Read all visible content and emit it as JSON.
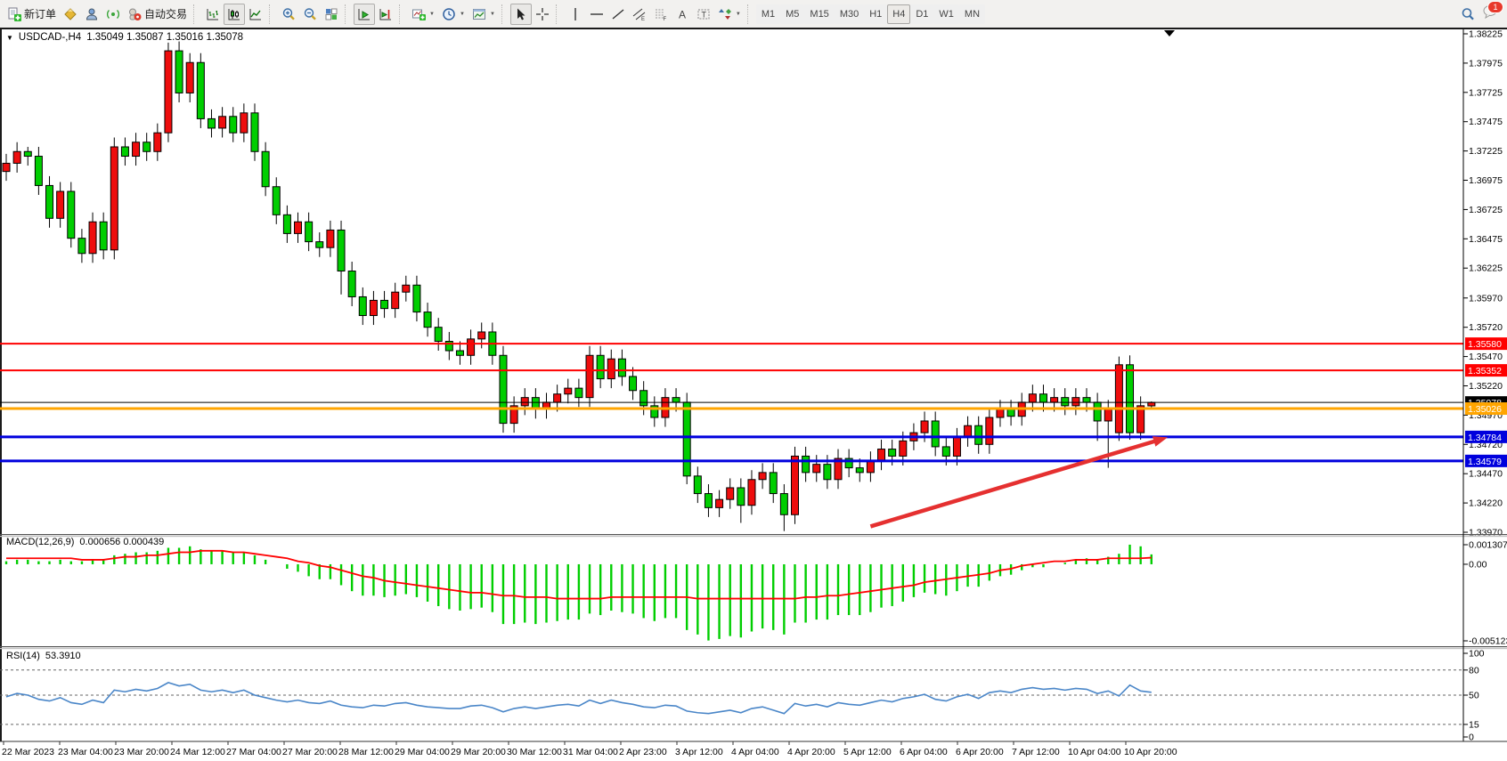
{
  "toolbar": {
    "new_order_label": "新订单",
    "autotrade_label": "自动交易",
    "timeframes": [
      "M1",
      "M5",
      "M15",
      "M30",
      "H1",
      "H4",
      "D1",
      "W1",
      "MN"
    ],
    "active_timeframe": "H4",
    "chat_badge": "1"
  },
  "chart": {
    "title_symbol": "USDCAD-,H4",
    "ohlc_text": "1.35049 1.35087 1.35016 1.35078"
  },
  "indicators": {
    "macd_label": "MACD(12,26,9)",
    "macd_values": "0.000656 0.000439",
    "rsi_label": "RSI(14)",
    "rsi_value": "53.3910"
  },
  "chart_data": {
    "type": "candlestick",
    "symbol": "USDCAD",
    "period": "H4",
    "colors": {
      "bull": "#ee0d0d",
      "bear": "#00ce00",
      "wick": "#000000",
      "macd_hist": "#00ce00",
      "macd_signal": "#ff0000",
      "rsi_line": "#4a86c8",
      "arrow": "#e53030"
    },
    "price_axis": {
      "top_value": 1.38225,
      "bottom_value": 1.3397,
      "ticks": [
        "1.38225",
        "1.37975",
        "1.37725",
        "1.37475",
        "1.37225",
        "1.36975",
        "1.36725",
        "1.36475",
        "1.36225",
        "1.35970",
        "1.35720",
        "1.35470",
        "1.35220",
        "1.34970",
        "1.34720",
        "1.34470",
        "1.34220",
        "1.33970"
      ]
    },
    "levels": [
      {
        "price": 1.3558,
        "label": "1.35580",
        "color": "#ff0000",
        "width": 2
      },
      {
        "price": 1.35352,
        "label": "1.35352",
        "color": "#ff0000",
        "width": 2
      },
      {
        "price": 1.35078,
        "label": "1.35078",
        "color": "#000000",
        "width": 1
      },
      {
        "price": 1.35026,
        "label": "1.35026",
        "color": "#ffa500",
        "width": 3
      },
      {
        "price": 1.34784,
        "label": "1.34784",
        "color": "#0000dd",
        "width": 3
      },
      {
        "price": 1.34579,
        "label": "1.34579",
        "color": "#0000dd",
        "width": 3
      }
    ],
    "trend_arrow": {
      "bar_start": 80,
      "price_start": 1.3402,
      "bar_end": 107.5,
      "price_end": 1.3478,
      "color": "#e53030"
    },
    "candles": [
      [
        1.3705,
        1.372,
        1.3697,
        1.3712
      ],
      [
        1.3712,
        1.373,
        1.3704,
        1.3722
      ],
      [
        1.3722,
        1.3726,
        1.371,
        1.3718
      ],
      [
        1.3718,
        1.3726,
        1.3685,
        1.3693
      ],
      [
        1.3693,
        1.3701,
        1.3657,
        1.3665
      ],
      [
        1.3665,
        1.3696,
        1.3657,
        1.3688
      ],
      [
        1.3688,
        1.3696,
        1.364,
        1.3648
      ],
      [
        1.3648,
        1.3656,
        1.3627,
        1.3635
      ],
      [
        1.3635,
        1.367,
        1.3627,
        1.3662
      ],
      [
        1.3662,
        1.367,
        1.363,
        1.3638
      ],
      [
        1.3638,
        1.3734,
        1.363,
        1.3726
      ],
      [
        1.3726,
        1.3734,
        1.371,
        1.3718
      ],
      [
        1.3718,
        1.3738,
        1.371,
        1.373
      ],
      [
        1.373,
        1.3738,
        1.3714,
        1.3722
      ],
      [
        1.3722,
        1.3746,
        1.3714,
        1.3738
      ],
      [
        1.3738,
        1.3815,
        1.373,
        1.3808
      ],
      [
        1.3808,
        1.3816,
        1.3764,
        1.3772
      ],
      [
        1.3772,
        1.3806,
        1.3764,
        1.3798
      ],
      [
        1.3798,
        1.3806,
        1.3742,
        1.375
      ],
      [
        1.375,
        1.3758,
        1.3734,
        1.3742
      ],
      [
        1.3742,
        1.376,
        1.3734,
        1.3752
      ],
      [
        1.3752,
        1.376,
        1.373,
        1.3738
      ],
      [
        1.3738,
        1.3763,
        1.373,
        1.3755
      ],
      [
        1.3755,
        1.3763,
        1.3714,
        1.3722
      ],
      [
        1.3722,
        1.373,
        1.3684,
        1.3692
      ],
      [
        1.3692,
        1.37,
        1.366,
        1.3668
      ],
      [
        1.3668,
        1.3676,
        1.3644,
        1.3652
      ],
      [
        1.3652,
        1.367,
        1.3644,
        1.3662
      ],
      [
        1.3662,
        1.367,
        1.3637,
        1.3645
      ],
      [
        1.3645,
        1.3653,
        1.3632,
        1.364
      ],
      [
        1.364,
        1.3663,
        1.3632,
        1.3655
      ],
      [
        1.3655,
        1.3663,
        1.36,
        1.362
      ],
      [
        1.362,
        1.3628,
        1.359,
        1.3598
      ],
      [
        1.3598,
        1.3606,
        1.3574,
        1.3582
      ],
      [
        1.3582,
        1.3603,
        1.3574,
        1.3595
      ],
      [
        1.3595,
        1.3603,
        1.358,
        1.3588
      ],
      [
        1.3588,
        1.361,
        1.358,
        1.3602
      ],
      [
        1.3602,
        1.3616,
        1.3594,
        1.3608
      ],
      [
        1.3608,
        1.3616,
        1.3577,
        1.3585
      ],
      [
        1.3585,
        1.3593,
        1.3564,
        1.3572
      ],
      [
        1.3572,
        1.358,
        1.3552,
        1.356
      ],
      [
        1.356,
        1.3568,
        1.3544,
        1.3552
      ],
      [
        1.3552,
        1.356,
        1.354,
        1.3548
      ],
      [
        1.3548,
        1.357,
        1.354,
        1.3562
      ],
      [
        1.3562,
        1.3576,
        1.3554,
        1.3568
      ],
      [
        1.3568,
        1.3576,
        1.354,
        1.3548
      ],
      [
        1.3548,
        1.3556,
        1.3482,
        1.349
      ],
      [
        1.349,
        1.3513,
        1.3482,
        1.3505
      ],
      [
        1.3505,
        1.352,
        1.3497,
        1.3512
      ],
      [
        1.3512,
        1.352,
        1.3494,
        1.3502
      ],
      [
        1.3502,
        1.3516,
        1.3494,
        1.3508
      ],
      [
        1.3508,
        1.3523,
        1.35,
        1.3515
      ],
      [
        1.3515,
        1.3528,
        1.3507,
        1.352
      ],
      [
        1.352,
        1.3528,
        1.3504,
        1.3512
      ],
      [
        1.3512,
        1.3556,
        1.3504,
        1.3548
      ],
      [
        1.3548,
        1.3556,
        1.352,
        1.3528
      ],
      [
        1.3528,
        1.3553,
        1.352,
        1.3545
      ],
      [
        1.3545,
        1.3553,
        1.3522,
        1.353
      ],
      [
        1.353,
        1.3538,
        1.351,
        1.3518
      ],
      [
        1.3518,
        1.3526,
        1.3497,
        1.3505
      ],
      [
        1.3505,
        1.3513,
        1.3487,
        1.3495
      ],
      [
        1.3495,
        1.352,
        1.3487,
        1.3512
      ],
      [
        1.3512,
        1.352,
        1.35,
        1.3508
      ],
      [
        1.3508,
        1.3516,
        1.3438,
        1.3445
      ],
      [
        1.3445,
        1.3453,
        1.3422,
        1.343
      ],
      [
        1.343,
        1.3438,
        1.341,
        1.3418
      ],
      [
        1.3418,
        1.3433,
        1.341,
        1.3425
      ],
      [
        1.3425,
        1.3443,
        1.3417,
        1.3435
      ],
      [
        1.3435,
        1.3443,
        1.3405,
        1.342
      ],
      [
        1.342,
        1.345,
        1.3412,
        1.3442
      ],
      [
        1.3442,
        1.3456,
        1.3434,
        1.3448
      ],
      [
        1.3448,
        1.3456,
        1.3422,
        1.343
      ],
      [
        1.343,
        1.3438,
        1.3398,
        1.3412
      ],
      [
        1.3412,
        1.347,
        1.3404,
        1.3462
      ],
      [
        1.3462,
        1.347,
        1.344,
        1.3448
      ],
      [
        1.3448,
        1.3463,
        1.344,
        1.3455
      ],
      [
        1.3455,
        1.3463,
        1.3434,
        1.3442
      ],
      [
        1.3442,
        1.3468,
        1.3434,
        1.346
      ],
      [
        1.346,
        1.3468,
        1.3444,
        1.3452
      ],
      [
        1.3452,
        1.346,
        1.344,
        1.3448
      ],
      [
        1.3448,
        1.3466,
        1.344,
        1.3458
      ],
      [
        1.3458,
        1.3476,
        1.345,
        1.3468
      ],
      [
        1.3468,
        1.3476,
        1.3454,
        1.3462
      ],
      [
        1.3462,
        1.3483,
        1.3454,
        1.3475
      ],
      [
        1.3475,
        1.349,
        1.3467,
        1.3482
      ],
      [
        1.3482,
        1.35,
        1.3474,
        1.3492
      ],
      [
        1.3492,
        1.35,
        1.3462,
        1.347
      ],
      [
        1.347,
        1.3478,
        1.3454,
        1.3462
      ],
      [
        1.3462,
        1.3486,
        1.3454,
        1.3478
      ],
      [
        1.3478,
        1.3496,
        1.347,
        1.3488
      ],
      [
        1.3488,
        1.3496,
        1.3464,
        1.3472
      ],
      [
        1.3472,
        1.3503,
        1.3464,
        1.3495
      ],
      [
        1.3495,
        1.351,
        1.3487,
        1.3502
      ],
      [
        1.3502,
        1.351,
        1.3488,
        1.3496
      ],
      [
        1.3496,
        1.3516,
        1.3488,
        1.3508
      ],
      [
        1.3508,
        1.3523,
        1.35,
        1.3515
      ],
      [
        1.3515,
        1.3523,
        1.35,
        1.3508
      ],
      [
        1.3508,
        1.352,
        1.35,
        1.3512
      ],
      [
        1.3512,
        1.352,
        1.3497,
        1.3505
      ],
      [
        1.3505,
        1.352,
        1.3497,
        1.3512
      ],
      [
        1.3512,
        1.352,
        1.35,
        1.3508
      ],
      [
        1.3508,
        1.3516,
        1.3475,
        1.3492
      ],
      [
        1.3492,
        1.351,
        1.3452,
        1.3502
      ],
      [
        1.3482,
        1.3547,
        1.3475,
        1.354
      ],
      [
        1.354,
        1.3548,
        1.3476,
        1.3482
      ],
      [
        1.3482,
        1.3513,
        1.3476,
        1.3505
      ],
      [
        1.35049,
        1.35087,
        1.35016,
        1.35078
      ]
    ],
    "macd": {
      "max": 0.001307,
      "min": -0.005123,
      "axis_ticks": [
        "0.001307",
        "0.00",
        "-0.005123"
      ],
      "hist": [
        0.0002,
        0.0003,
        0.0003,
        0.0002,
        0.0002,
        0.0003,
        0.0002,
        0.0002,
        0.0003,
        0.0003,
        0.0006,
        0.0007,
        0.0008,
        0.0008,
        0.0009,
        0.0011,
        0.0011,
        0.0012,
        0.001,
        0.0009,
        0.0009,
        0.0008,
        0.0008,
        0.0006,
        0.0003,
        0.0,
        -0.0003,
        -0.0005,
        -0.0008,
        -0.001,
        -0.001,
        -0.0014,
        -0.0018,
        -0.0021,
        -0.0021,
        -0.0022,
        -0.0021,
        -0.002,
        -0.0022,
        -0.0025,
        -0.0028,
        -0.003,
        -0.0031,
        -0.003,
        -0.0029,
        -0.0032,
        -0.004,
        -0.004,
        -0.0039,
        -0.004,
        -0.0039,
        -0.0038,
        -0.0037,
        -0.0037,
        -0.0033,
        -0.0034,
        -0.0031,
        -0.0032,
        -0.0033,
        -0.0036,
        -0.0038,
        -0.0036,
        -0.0036,
        -0.0044,
        -0.0047,
        -0.0051,
        -0.005,
        -0.0048,
        -0.0049,
        -0.0045,
        -0.0043,
        -0.0044,
        -0.0047,
        -0.0039,
        -0.0039,
        -0.0037,
        -0.0037,
        -0.0034,
        -0.0034,
        -0.0034,
        -0.0032,
        -0.0029,
        -0.0028,
        -0.0025,
        -0.0022,
        -0.0019,
        -0.002,
        -0.0021,
        -0.0018,
        -0.0015,
        -0.0015,
        -0.0011,
        -0.0008,
        -0.0007,
        -0.0004,
        -0.0002,
        -0.0002,
        0.0,
        0.0001,
        0.0003,
        0.0004,
        0.0003,
        0.0005,
        0.0007,
        0.00131,
        0.0012,
        0.00066
      ],
      "signal": [
        0.0004,
        0.0004,
        0.0004,
        0.0004,
        0.0004,
        0.0004,
        0.0004,
        0.0003,
        0.0003,
        0.0003,
        0.0004,
        0.0005,
        0.0005,
        0.0006,
        0.0006,
        0.0007,
        0.0008,
        0.0008,
        0.0009,
        0.0009,
        0.0009,
        0.0008,
        0.0008,
        0.0007,
        0.0006,
        0.0005,
        0.0004,
        0.0002,
        0.0001,
        -0.0001,
        -0.0002,
        -0.0004,
        -0.0006,
        -0.0008,
        -0.0009,
        -0.0011,
        -0.0012,
        -0.0013,
        -0.0014,
        -0.0015,
        -0.0016,
        -0.0017,
        -0.0018,
        -0.0019,
        -0.0019,
        -0.002,
        -0.0021,
        -0.0021,
        -0.0022,
        -0.0022,
        -0.0022,
        -0.0023,
        -0.0023,
        -0.0023,
        -0.0023,
        -0.0023,
        -0.0022,
        -0.0022,
        -0.0022,
        -0.0022,
        -0.0022,
        -0.0022,
        -0.0022,
        -0.0022,
        -0.0023,
        -0.0023,
        -0.0023,
        -0.0023,
        -0.0023,
        -0.0023,
        -0.0023,
        -0.0023,
        -0.0023,
        -0.0023,
        -0.0022,
        -0.0022,
        -0.0021,
        -0.0021,
        -0.002,
        -0.0019,
        -0.0018,
        -0.0017,
        -0.0016,
        -0.0015,
        -0.0014,
        -0.0012,
        -0.0011,
        -0.001,
        -0.0009,
        -0.0008,
        -0.0007,
        -0.0006,
        -0.0004,
        -0.0003,
        -0.0001,
        0.0,
        0.0001,
        0.0002,
        0.0002,
        0.0003,
        0.0003,
        0.0003,
        0.0004,
        0.0004,
        0.0004,
        0.0004,
        0.000439
      ]
    },
    "rsi": {
      "max": 100,
      "min": 0,
      "levels": [
        80,
        50,
        15
      ],
      "axis_ticks": [
        "100",
        "80",
        "50",
        "15",
        "0"
      ],
      "values": [
        48,
        52,
        50,
        45,
        43,
        47,
        41,
        39,
        44,
        41,
        56,
        54,
        57,
        55,
        58,
        65,
        61,
        63,
        56,
        54,
        56,
        53,
        56,
        50,
        47,
        44,
        42,
        44,
        41,
        40,
        43,
        38,
        36,
        35,
        38,
        37,
        40,
        41,
        38,
        36,
        35,
        34,
        34,
        37,
        38,
        35,
        30,
        34,
        36,
        34,
        36,
        38,
        39,
        37,
        44,
        40,
        44,
        41,
        39,
        36,
        35,
        38,
        37,
        31,
        29,
        28,
        30,
        32,
        29,
        34,
        36,
        32,
        28,
        40,
        37,
        39,
        36,
        41,
        39,
        38,
        41,
        44,
        42,
        46,
        48,
        51,
        45,
        43,
        48,
        51,
        46,
        53,
        55,
        53,
        57,
        59,
        57,
        58,
        56,
        58,
        57,
        52,
        55,
        49,
        62,
        55,
        53.39
      ]
    },
    "time_labels": [
      "22 Mar 2023",
      "23 Mar 04:00",
      "23 Mar 20:00",
      "24 Mar 12:00",
      "27 Mar 04:00",
      "27 Mar 20:00",
      "28 Mar 12:00",
      "29 Mar 04:00",
      "29 Mar 20:00",
      "30 Mar 12:00",
      "31 Mar 04:00",
      "2 Apr 23:00",
      "3 Apr 12:00",
      "4 Apr 04:00",
      "4 Apr 20:00",
      "5 Apr 12:00",
      "6 Apr 04:00",
      "6 Apr 20:00",
      "7 Apr 12:00",
      "10 Apr 04:00",
      "10 Apr 20:00"
    ]
  }
}
